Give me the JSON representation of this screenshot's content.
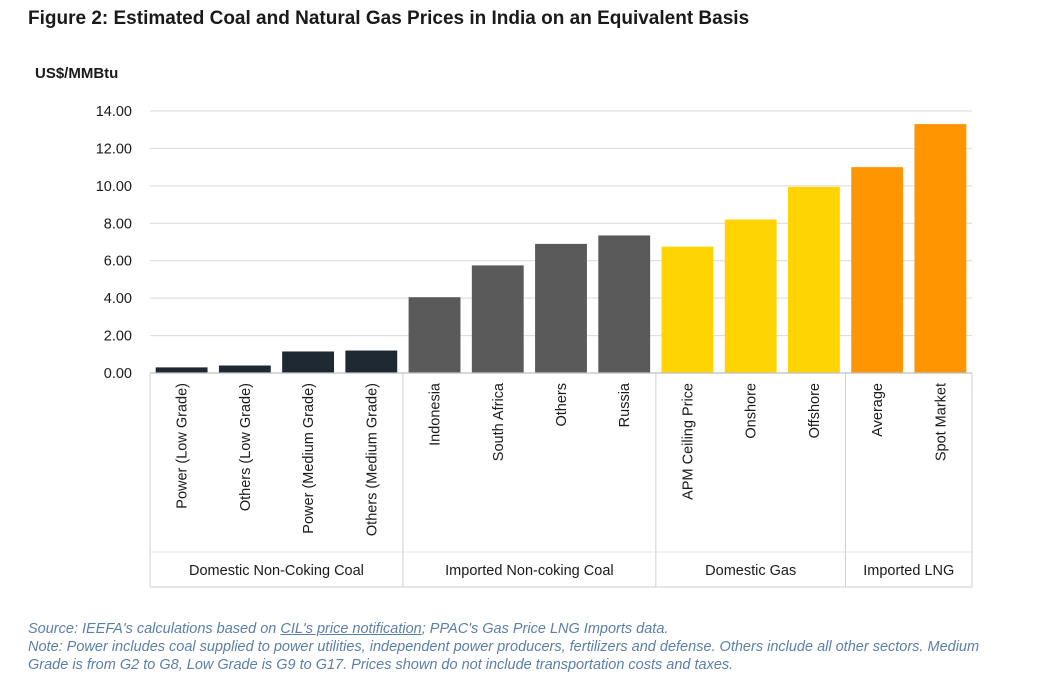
{
  "figure_title": "Figure 2: Estimated Coal and Natural Gas Prices in India on an Equivalent Basis",
  "colors": {
    "domestic_coal": "#1f2933",
    "imported_coal": "#5a5a5a",
    "domestic_gas": "#ffd400",
    "imported_lng": "#ff9500",
    "grid": "#d9d9d9",
    "text": "#1a1a1a",
    "note_text": "#5b7fa8"
  },
  "chart_data": {
    "type": "bar",
    "title": "Figure 2: Estimated Coal and Natural Gas Prices in India on an Equivalent Basis",
    "ylabel": "US$/MMBtu",
    "xlabel": "",
    "ylim": [
      0,
      14
    ],
    "yticks": [
      "0.00",
      "2.00",
      "4.00",
      "6.00",
      "8.00",
      "10.00",
      "12.00",
      "14.00"
    ],
    "grid": true,
    "categories": [
      "Power (Low Grade)",
      "Others (Low Grade)",
      "Power (Medium Grade)",
      "Others (Medium Grade)",
      "Indonesia",
      "South Africa",
      "Others",
      "Russia",
      "APM Ceiling Price",
      "Onshore",
      "Offshore",
      "Average",
      "Spot Market"
    ],
    "values": [
      0.3,
      0.4,
      1.15,
      1.2,
      4.05,
      5.75,
      6.9,
      7.35,
      6.75,
      8.2,
      9.95,
      11.0,
      13.3
    ],
    "groups": [
      {
        "label": "Domestic Non-Coking Coal",
        "count": 4,
        "color_key": "domestic_coal"
      },
      {
        "label": "Imported Non-coking Coal",
        "count": 4,
        "color_key": "imported_coal"
      },
      {
        "label": "Domestic Gas",
        "count": 3,
        "color_key": "domestic_gas"
      },
      {
        "label": "Imported LNG",
        "count": 2,
        "color_key": "imported_lng"
      }
    ]
  },
  "notes": {
    "source_prefix": "Source: IEEFA's calculations based on ",
    "source_link": "CIL's price notification",
    "source_suffix": "; PPAC's Gas Price LNG Imports data.",
    "note": "Note: Power includes coal supplied to power utilities, independent power producers, fertilizers and defense. Others include all other sectors. Medium Grade is from G2 to G8, Low Grade is G9 to G17. Prices shown do not include transportation costs and taxes."
  }
}
